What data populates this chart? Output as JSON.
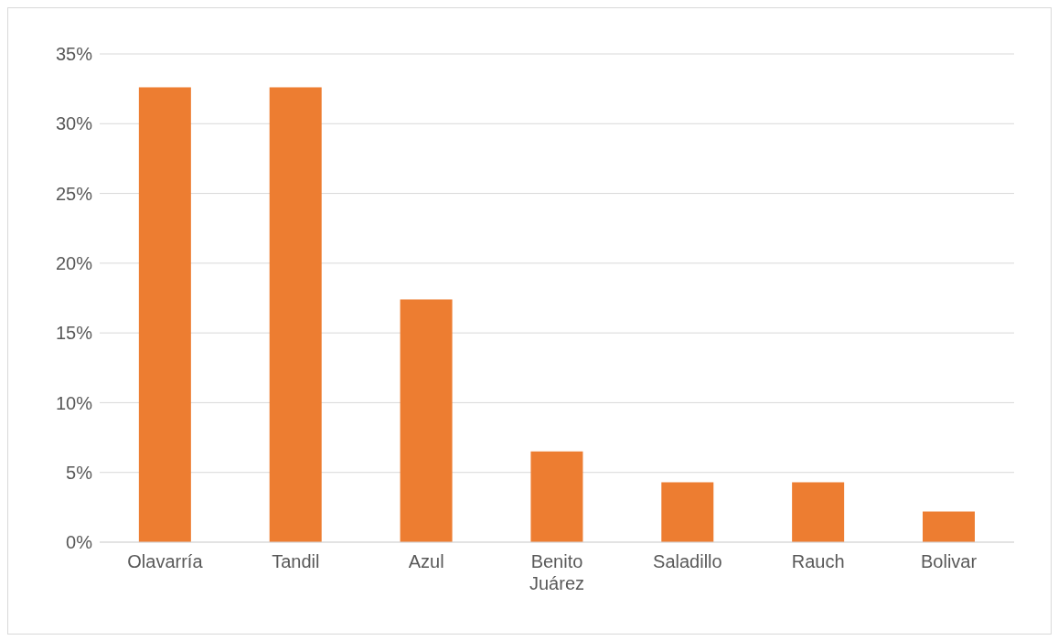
{
  "chart_data": {
    "type": "bar",
    "categories": [
      "Olavarría",
      "Tandil",
      "Azul",
      "Benito Juárez",
      "Saladillo",
      "Rauch",
      "Bolivar"
    ],
    "values": [
      32.6,
      32.6,
      17.4,
      6.5,
      4.3,
      4.3,
      2.2
    ],
    "color": "#ed7d31",
    "ylim": [
      0,
      35
    ],
    "yticks": [
      {
        "value": 0,
        "label": "0%"
      },
      {
        "value": 5,
        "label": "5%"
      },
      {
        "value": 10,
        "label": "10%"
      },
      {
        "value": 15,
        "label": "15%"
      },
      {
        "value": 20,
        "label": "20%"
      },
      {
        "value": 25,
        "label": "25%"
      },
      {
        "value": 30,
        "label": "30%"
      },
      {
        "value": 35,
        "label": "35%"
      }
    ],
    "grid": "y",
    "legend": false
  }
}
